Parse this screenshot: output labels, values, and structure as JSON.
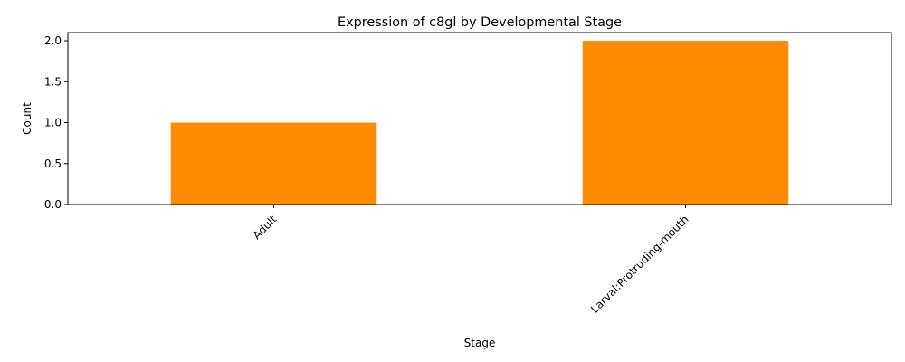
{
  "chart_data": {
    "type": "bar",
    "title": "Expression of c8gl by Developmental Stage",
    "xlabel": "Stage",
    "ylabel": "Count",
    "categories": [
      "Adult",
      "Larval:Protruding-mouth"
    ],
    "values": [
      1,
      2
    ],
    "ylim": [
      0,
      2.1
    ],
    "yticks": [
      "0.0",
      "0.5",
      "1.0",
      "1.5",
      "2.0"
    ],
    "bar_color": "#ff8c00",
    "grid": false,
    "legend": "none"
  }
}
